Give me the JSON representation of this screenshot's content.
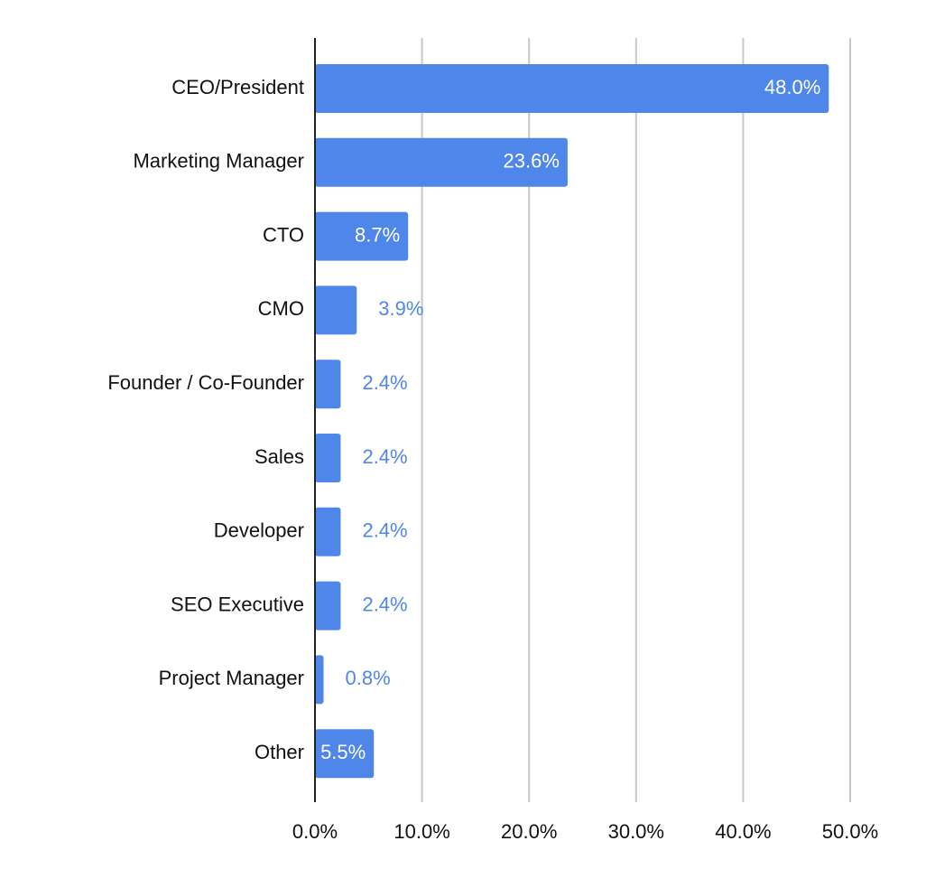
{
  "chart_data": {
    "type": "bar",
    "orientation": "horizontal",
    "categories": [
      "CEO/President",
      "Marketing Manager",
      "CTO",
      "CMO",
      "Founder / Co-Founder",
      "Sales",
      "Developer",
      "SEO Executive",
      "Project Manager",
      "Other"
    ],
    "values": [
      48.0,
      23.6,
      8.7,
      3.9,
      2.4,
      2.4,
      2.4,
      2.4,
      0.8,
      5.5
    ],
    "data_labels": [
      "48.0%",
      "23.6%",
      "8.7%",
      "3.9%",
      "2.4%",
      "2.4%",
      "2.4%",
      "2.4%",
      "0.8%",
      "5.5%"
    ],
    "xlim": [
      0,
      50
    ],
    "x_ticks": [
      0,
      10,
      20,
      30,
      40,
      50
    ],
    "x_tick_labels": [
      "0.0%",
      "10.0%",
      "20.0%",
      "30.0%",
      "40.0%",
      "50.0%"
    ],
    "title": "",
    "xlabel": "",
    "ylabel": "",
    "grid": "vertical",
    "legend": "none",
    "colors": {
      "bar": "#4f86ea",
      "label_inside": "#ffffff",
      "label_outside": "#4f86ea",
      "grid": "#c8c8c8",
      "axis": "#222222",
      "text": "#111111"
    }
  }
}
